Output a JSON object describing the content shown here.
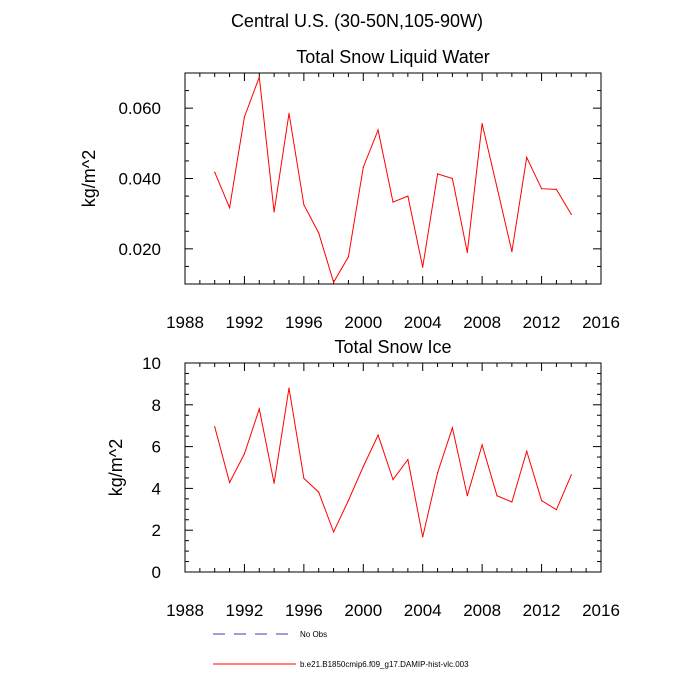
{
  "figure": {
    "title": "Central U.S. (30-50N,105-90W)"
  },
  "legend": [
    {
      "label": "No Obs",
      "color": "#3b3bb0",
      "style": "dashed"
    },
    {
      "label": "b.e21.B1850cmip6.f09_g17.DAMIP-hist-vlc.003",
      "color": "#ff0000",
      "style": "solid"
    }
  ],
  "chart_data": [
    {
      "type": "line",
      "title": "Total Snow Liquid Water",
      "xlabel": "",
      "ylabel": "kg/m^2",
      "xlim": [
        1988,
        2016
      ],
      "ylim": [
        0.01,
        0.07
      ],
      "xticks": [
        1988,
        1992,
        1996,
        2000,
        2004,
        2008,
        2012,
        2016
      ],
      "xtick_labels": [
        "1988",
        "1992",
        "1996",
        "2000",
        "2004",
        "2008",
        "2012",
        "2016"
      ],
      "yticks": [
        0.02,
        0.04,
        0.06
      ],
      "ytick_labels": [
        "0.020",
        "0.040",
        "0.060"
      ],
      "series": [
        {
          "name": "b.e21.B1850cmip6.f09_g17.DAMIP-hist-vlc.003",
          "color": "#ff0000",
          "x": [
            1990,
            1991,
            1992,
            1993,
            1994,
            1995,
            1996,
            1997,
            1998,
            1999,
            2000,
            2001,
            2002,
            2003,
            2004,
            2005,
            2006,
            2007,
            2008,
            2009,
            2010,
            2011,
            2012,
            2013,
            2014
          ],
          "values": [
            0.0418,
            0.0317,
            0.0575,
            0.0688,
            0.0305,
            0.0585,
            0.0325,
            0.0245,
            0.0105,
            0.0177,
            0.0432,
            0.0538,
            0.0333,
            0.035,
            0.0148,
            0.0413,
            0.04,
            0.019,
            0.0556,
            0.0375,
            0.0192,
            0.046,
            0.0371,
            0.0369,
            0.0298
          ]
        }
      ]
    },
    {
      "type": "line",
      "title": "Total Snow Ice",
      "xlabel": "",
      "ylabel": "kg/m^2",
      "xlim": [
        1988,
        2016
      ],
      "ylim": [
        0,
        10
      ],
      "xticks": [
        1988,
        1992,
        1996,
        2000,
        2004,
        2008,
        2012,
        2016
      ],
      "xtick_labels": [
        "1988",
        "1992",
        "1996",
        "2000",
        "2004",
        "2008",
        "2012",
        "2016"
      ],
      "yticks": [
        0,
        2,
        4,
        6,
        8,
        10
      ],
      "ytick_labels": [
        "0",
        "2",
        "4",
        "6",
        "8",
        "10"
      ],
      "series": [
        {
          "name": "b.e21.B1850cmip6.f09_g17.DAMIP-hist-vlc.003",
          "color": "#ff0000",
          "x": [
            1990,
            1991,
            1992,
            1993,
            1994,
            1995,
            1996,
            1997,
            1998,
            1999,
            2000,
            2001,
            2002,
            2003,
            2004,
            2005,
            2006,
            2007,
            2008,
            2009,
            2010,
            2011,
            2012,
            2013,
            2014
          ],
          "values": [
            6.95,
            4.28,
            5.65,
            7.8,
            4.25,
            8.8,
            4.48,
            3.82,
            1.92,
            3.42,
            5.05,
            6.55,
            4.42,
            5.38,
            1.68,
            4.75,
            6.9,
            3.65,
            6.08,
            3.65,
            3.35,
            5.78,
            3.42,
            2.98,
            4.65
          ]
        }
      ]
    }
  ]
}
